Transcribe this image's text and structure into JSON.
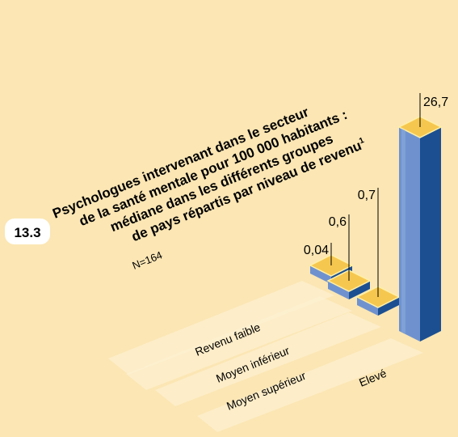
{
  "figure_number": "13.3",
  "chart_data": {
    "type": "bar",
    "title_lines": [
      "Psychologues intervenant dans le secteur",
      "de la santé mentale pour 100 000 habitants :",
      "médiane dans les différents groupes",
      "de pays répartis par niveau de revenu"
    ],
    "title_footnote": "1",
    "subtitle": "N=164",
    "categories": [
      "Revenu faible",
      "Moyen inférieur",
      "Moyen supérieur",
      "Elevé"
    ],
    "values": [
      0.04,
      0.6,
      0.7,
      26.7
    ],
    "value_labels": [
      "0,04",
      "0,6",
      "0,7",
      "26,7"
    ],
    "ylim": [
      0,
      26.7
    ],
    "grid": false,
    "legend": "none"
  },
  "colors": {
    "background": "#fbe6b4",
    "floor_stripe": "#fdf1d3",
    "bar_top": "#f6c74f",
    "bar_top_edge": "#fff0a8",
    "bar_front": "#6f92cf",
    "bar_side": "#1b4f91",
    "badge": "#ffffff",
    "leader_line": "#000000"
  }
}
